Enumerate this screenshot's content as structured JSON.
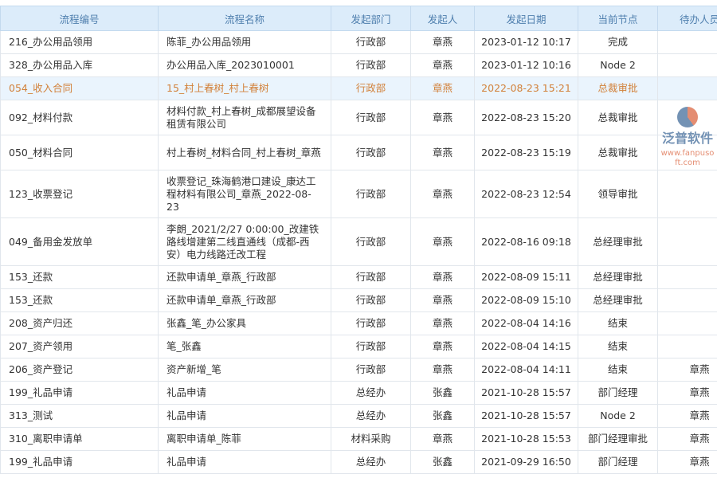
{
  "headers": [
    "流程编号",
    "流程名称",
    "发起部门",
    "发起人",
    "发起日期",
    "当前节点",
    "待办人员"
  ],
  "rows": [
    [
      "216_办公用品领用",
      "陈菲_办公用品领用",
      "行政部",
      "章燕",
      "2023-01-12 10:17",
      "完成",
      ""
    ],
    [
      "328_办公用品入库",
      "办公用品入库_2023010001",
      "行政部",
      "章燕",
      "2023-01-12 10:16",
      "Node 2",
      ""
    ],
    [
      "054_收入合同",
      "15_村上春树_村上春树",
      "行政部",
      "章燕",
      "2022-08-23 15:21",
      "总裁审批",
      ""
    ],
    [
      "092_材料付款",
      "材料付款_村上春树_成都展望设备租赁有限公司",
      "行政部",
      "章燕",
      "2022-08-23 15:20",
      "总裁审批",
      ""
    ],
    [
      "050_材料合同",
      "村上春树_材料合同_村上春树_章燕",
      "行政部",
      "章燕",
      "2022-08-23 15:19",
      "总裁审批",
      ""
    ],
    [
      "123_收票登记",
      "收票登记_珠海鹤港口建设_康达工程材料有限公司_章燕_2022-08-23",
      "行政部",
      "章燕",
      "2022-08-23 12:54",
      "领导审批",
      ""
    ],
    [
      "049_备用金发放单",
      "李朗_2021/2/27 0:00:00_改建铁路线增建第二线直通线（成都-西安）电力线路迁改工程",
      "行政部",
      "章燕",
      "2022-08-16 09:18",
      "总经理审批",
      ""
    ],
    [
      "153_还款",
      "还款申请单_章燕_行政部",
      "行政部",
      "章燕",
      "2022-08-09 15:11",
      "总经理审批",
      ""
    ],
    [
      "153_还款",
      "还款申请单_章燕_行政部",
      "行政部",
      "章燕",
      "2022-08-09 15:10",
      "总经理审批",
      ""
    ],
    [
      "208_资产归还",
      "张鑫_笔_办公家具",
      "行政部",
      "章燕",
      "2022-08-04 14:16",
      "结束",
      ""
    ],
    [
      "207_资产领用",
      "笔_张鑫",
      "行政部",
      "章燕",
      "2022-08-04 14:15",
      "结束",
      ""
    ],
    [
      "206_资产登记",
      "资产新增_笔",
      "行政部",
      "章燕",
      "2022-08-04 14:11",
      "结束",
      "章燕"
    ],
    [
      "199_礼品申请",
      "礼品申请",
      "总经办",
      "张鑫",
      "2021-10-28 15:57",
      "部门经理",
      "章燕"
    ],
    [
      "313_测试",
      "礼品申请",
      "总经办",
      "张鑫",
      "2021-10-28 15:57",
      "Node 2",
      "章燕"
    ],
    [
      "310_离职申请单",
      "离职申请单_陈菲",
      "材料采购",
      "章燕",
      "2021-10-28 15:53",
      "部门经理审批",
      "章燕"
    ],
    [
      "199_礼品申请",
      "礼品申请",
      "总经办",
      "张鑫",
      "2021-09-29 16:50",
      "部门经理",
      "章燕"
    ]
  ],
  "highlight_row": 2,
  "watermark": {
    "name": "泛普软件",
    "url": "www.fanpusoft.com"
  }
}
